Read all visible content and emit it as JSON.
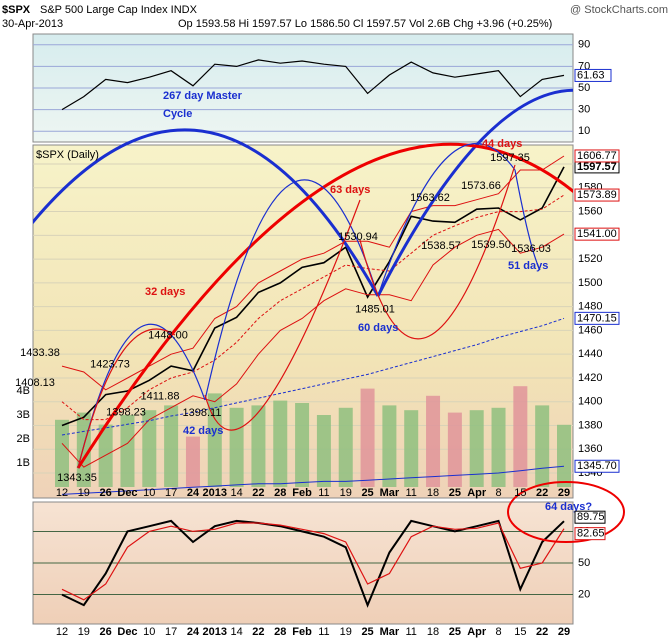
{
  "header": {
    "symbol": "$SPX",
    "subtitle": "S&P 500 Large Cap Index  INDX",
    "source": "@ StockCharts.com",
    "date": "30-Apr-2013",
    "quote": "Op 1593.58  Hi 1597.57  Lo 1586.50  Cl 1597.57  Vol 2.6B  Chg +3.96 (+0.25%)"
  },
  "chart_data": [
    {
      "type": "line",
      "color": "#000000",
      "ylim": [
        0,
        100
      ],
      "yticks": [
        10,
        30,
        50,
        70,
        90
      ],
      "values": [
        30,
        42,
        58,
        55,
        60,
        66,
        52,
        72,
        70,
        76,
        73,
        75,
        72,
        70,
        45,
        62,
        74,
        64,
        60,
        63,
        66,
        42,
        58,
        61.63
      ]
    },
    {
      "type": "line",
      "title": "$SPX (Daily)",
      "categories": [
        "12",
        "19",
        "26",
        "Dec",
        "10",
        "17",
        "24",
        "2013",
        "14",
        "22",
        "28",
        "Feb",
        "11",
        "19",
        "25",
        "Mar",
        "11",
        "18",
        "25",
        "Apr",
        "8",
        "15",
        "22",
        "29"
      ],
      "ylim": [
        1319,
        1616
      ],
      "yticks": [
        1340,
        1360,
        1380,
        1400,
        1420,
        1440,
        1460,
        1480,
        1500,
        1520,
        1540,
        1560,
        1580,
        1600
      ],
      "grid": true,
      "series": [
        {
          "color": "#000000",
          "values": [
            1380,
            1387,
            1406,
            1409,
            1418,
            1430,
            1426,
            1462,
            1471,
            1492,
            1500,
            1513,
            1517,
            1530,
            1488,
            1518,
            1556,
            1552,
            1551,
            1562,
            1563,
            1553,
            1563,
            1597.57
          ]
        },
        {
          "color": "#dd1111",
          "values": [
            1430,
            1425,
            1410,
            1420,
            1430,
            1440,
            1445,
            1470,
            1480,
            1500,
            1510,
            1520,
            1525,
            1535,
            1535,
            1530,
            1560,
            1565,
            1565,
            1570,
            1575,
            1595,
            1595,
            1606.77
          ]
        },
        {
          "color": "#dd1111",
          "dashed": true,
          "values": [
            1400,
            1385,
            1385,
            1395,
            1410,
            1420,
            1425,
            1435,
            1450,
            1470,
            1485,
            1495,
            1505,
            1515,
            1512,
            1510,
            1525,
            1540,
            1548,
            1555,
            1560,
            1560,
            1562,
            1573.89
          ]
        },
        {
          "color": "#dd1111",
          "values": [
            1365,
            1345,
            1355,
            1365,
            1385,
            1395,
            1405,
            1400,
            1415,
            1440,
            1460,
            1470,
            1485,
            1495,
            1490,
            1490,
            1485,
            1515,
            1530,
            1540,
            1545,
            1525,
            1530,
            1541
          ],
          "value_labels": [
            null,
            null,
            null,
            null,
            null,
            null,
            null,
            null,
            null,
            null,
            null,
            null,
            null,
            null,
            null,
            null,
            null,
            null,
            null,
            null,
            null,
            null,
            null,
            "1541.00"
          ]
        },
        {
          "color": "#1a2fd0",
          "dashed": true,
          "values": [
            1372,
            1375,
            1378,
            1381,
            1384,
            1388,
            1391,
            1395,
            1399,
            1403,
            1407,
            1411,
            1415,
            1419,
            1423,
            1428,
            1433,
            1438,
            1443,
            1448,
            1454,
            1459,
            1464,
            1470.15
          ]
        },
        {
          "color": "#1a2fd0",
          "values": [
            1322,
            1323,
            1324,
            1325,
            1326,
            1327,
            1328,
            1329,
            1330,
            1331,
            1331,
            1332,
            1333,
            1333,
            1334,
            1335,
            1336,
            1337,
            1338,
            1339,
            1340,
            1342,
            1344,
            1345.7
          ],
          "value_labels": [
            null,
            null,
            null,
            null,
            null,
            null,
            null,
            null,
            null,
            null,
            null,
            null,
            null,
            null,
            null,
            null,
            null,
            null,
            null,
            null,
            null,
            null,
            null,
            "1345.70"
          ]
        }
      ],
      "volume": {
        "ylim": [
          0,
          6000000
        ],
        "yticks": [
          {
            "value": 1000000,
            "label": "1B"
          },
          {
            "value": 2000000,
            "label": "2B"
          },
          {
            "value": 3000000,
            "label": "3B"
          },
          {
            "value": 4000000,
            "label": "4B"
          }
        ],
        "values": [
          2800000,
          3100000,
          2600000,
          3000000,
          3200000,
          3400000,
          2100000,
          3900000,
          3300000,
          3400000,
          3600000,
          3500000,
          3000000,
          3300000,
          4100000,
          3400000,
          3200000,
          3800000,
          3100000,
          3200000,
          3300000,
          4200000,
          3400000,
          2591662
        ]
      },
      "pivots": {
        "values": [
          1433.38,
          1408.13,
          1343.35,
          1423.73,
          1411.88,
          1398.23,
          1448,
          1398.11,
          1530.94,
          1485.01,
          1563.62,
          1538.57,
          1573.66,
          1539.5,
          1597.35,
          1536.03
        ],
        "value_labels": [
          "1433.38",
          "1408.13",
          "1343.35",
          "1423.73",
          "1411.88",
          "1398.23",
          "1448.00",
          "1398.11",
          "1530.94",
          "1485.01",
          "1563.62",
          "1538.57",
          "1573.66",
          "1539.50",
          "1597.35",
          "1536.03"
        ]
      },
      "annotations": [
        "267 day Master",
        "Cycle",
        "32 days",
        "63 days",
        "44 days",
        "42 days",
        "60 days",
        "51 days",
        "64 days?"
      ]
    },
    {
      "type": "line",
      "categories": [
        "12",
        "19",
        "26",
        "Dec",
        "10",
        "17",
        "24",
        "2013",
        "14",
        "22",
        "28",
        "Feb",
        "11",
        "19",
        "25",
        "Mar",
        "11",
        "18",
        "25",
        "Apr",
        "8",
        "15",
        "22",
        "29"
      ],
      "ylim": [
        -8,
        108
      ],
      "yticks": [
        20,
        50,
        80
      ],
      "series": [
        {
          "color": "#000000",
          "values": [
            20,
            10,
            40,
            80,
            85,
            90,
            70,
            85,
            90,
            88,
            85,
            80,
            75,
            65,
            10,
            60,
            90,
            85,
            80,
            85,
            90,
            25,
            70,
            89.75
          ]
        },
        {
          "color": "#dd1111",
          "values": [
            25,
            15,
            30,
            65,
            80,
            85,
            80,
            82,
            88,
            88,
            86,
            82,
            78,
            70,
            30,
            40,
            75,
            85,
            82,
            83,
            88,
            45,
            50,
            82.65
          ]
        }
      ]
    }
  ]
}
